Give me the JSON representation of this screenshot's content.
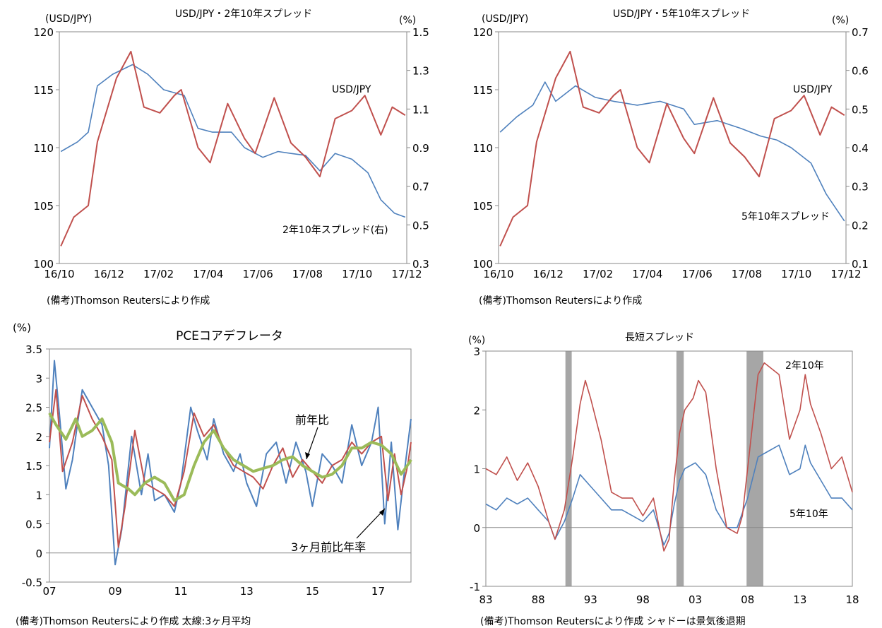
{
  "charts": [
    {
      "id": "c1",
      "title": "USD/JPY・2年10年スプレッド",
      "left_unit": "(USD/JPY)",
      "right_unit": "(%)",
      "left_ticks": [
        "120",
        "115",
        "110",
        "105",
        "100"
      ],
      "right_ticks": [
        "1.5",
        "1.3",
        "1.1",
        "0.9",
        "0.7",
        "0.5",
        "0.3"
      ],
      "x_ticks": [
        "16/10",
        "16/12",
        "17/02",
        "17/04",
        "17/06",
        "17/08",
        "17/10",
        "17/12"
      ],
      "labels": {
        "usdjpy": "USD/JPY",
        "spread": "2年10年スプレッド(右)"
      },
      "note": "(備考)Thomson Reutersにより作成"
    },
    {
      "id": "c2",
      "title": "USD/JPY・5年10年スプレッド",
      "left_unit": "(USD/JPY)",
      "right_unit": "(%)",
      "left_ticks": [
        "120",
        "115",
        "110",
        "105",
        "100"
      ],
      "right_ticks": [
        "0.7",
        "0.6",
        "0.5",
        "0.4",
        "0.3",
        "0.2",
        "0.1"
      ],
      "x_ticks": [
        "16/10",
        "16/12",
        "17/02",
        "17/04",
        "17/06",
        "17/08",
        "17/10",
        "17/12"
      ],
      "labels": {
        "usdjpy": "USD/JPY",
        "spread": "5年10年スプレッド"
      },
      "note": "(備考)Thomson Reutersにより作成"
    },
    {
      "id": "c3",
      "title": "PCEコアデフレータ",
      "left_unit": "(%)",
      "left_ticks": [
        "3.5",
        "3",
        "2.5",
        "2",
        "1.5",
        "1",
        "0.5",
        "0",
        "-0.5"
      ],
      "x_ticks": [
        "07",
        "09",
        "11",
        "13",
        "15",
        "17"
      ],
      "labels": {
        "yoy": "前年比",
        "m3": "3ヶ月前比年率"
      },
      "note": "(備考)Thomson Reutersにより作成 太線:3ヶ月平均"
    },
    {
      "id": "c4",
      "title": "長短スプレッド",
      "left_unit": "(%)",
      "left_ticks": [
        "3",
        "2",
        "1",
        "0",
        "-1"
      ],
      "x_ticks": [
        "83",
        "88",
        "93",
        "98",
        "03",
        "08",
        "13",
        "18"
      ],
      "labels": {
        "s2": "2年10年",
        "s5": "5年10年"
      },
      "note": "(備考)Thomson Reutersにより作成 シャドーは景気後退期"
    }
  ],
  "colors": {
    "red": "#c0504d",
    "blue": "#4f81bd",
    "green": "#9bbb59",
    "shade": "#a6a6a6",
    "axis": "#898989"
  },
  "chart_data": [
    {
      "type": "line",
      "title": "USD/JPY・2年10年スプレッド",
      "x_range": [
        "2016-10",
        "2017-12"
      ],
      "y_left": {
        "label": "(USD/JPY)",
        "range": [
          100,
          120
        ]
      },
      "y_right": {
        "label": "(%)",
        "range": [
          0.3,
          1.5
        ]
      },
      "series": [
        {
          "name": "USD/JPY",
          "axis": "left",
          "color": "#c0504d",
          "x": [
            "2016-10-03",
            "2016-10-20",
            "2016-11-08",
            "2016-11-20",
            "2016-12-15",
            "2017-01-03",
            "2017-01-20",
            "2017-02-10",
            "2017-03-01",
            "2017-03-10",
            "2017-04-01",
            "2017-04-17",
            "2017-05-10",
            "2017-06-01",
            "2017-06-15",
            "2017-07-10",
            "2017-08-01",
            "2017-08-20",
            "2017-09-08",
            "2017-09-28",
            "2017-10-20",
            "2017-11-06",
            "2017-11-27",
            "2017-12-12",
            "2017-12-29"
          ],
          "y": [
            101.5,
            104,
            105,
            110.5,
            116,
            118.3,
            113.5,
            113,
            114.5,
            115,
            110,
            108.7,
            113.8,
            110.8,
            109.5,
            114.3,
            110.4,
            109.2,
            107.5,
            112.5,
            113.2,
            114.5,
            111.1,
            113.5,
            112.8
          ]
        },
        {
          "name": "2年10年スプレッド(右)",
          "axis": "right",
          "color": "#4f81bd",
          "x": [
            "2016-10-03",
            "2016-10-25",
            "2016-11-08",
            "2016-11-20",
            "2016-12-10",
            "2017-01-05",
            "2017-01-25",
            "2017-02-15",
            "2017-03-14",
            "2017-04-01",
            "2017-04-20",
            "2017-05-15",
            "2017-06-01",
            "2017-06-25",
            "2017-07-15",
            "2017-08-01",
            "2017-08-20",
            "2017-09-08",
            "2017-09-28",
            "2017-10-20",
            "2017-11-10",
            "2017-11-27",
            "2017-12-15",
            "2017-12-29"
          ],
          "y": [
            0.88,
            0.93,
            0.98,
            1.22,
            1.28,
            1.33,
            1.28,
            1.2,
            1.17,
            1.0,
            0.98,
            0.98,
            0.9,
            0.85,
            0.88,
            0.87,
            0.86,
            0.78,
            0.87,
            0.84,
            0.77,
            0.63,
            0.56,
            0.54
          ]
        }
      ]
    },
    {
      "type": "line",
      "title": "USD/JPY・5年10年スプレッド",
      "x_range": [
        "2016-10",
        "2017-12"
      ],
      "y_left": {
        "label": "(USD/JPY)",
        "range": [
          100,
          120
        ]
      },
      "y_right": {
        "label": "(%)",
        "range": [
          0.1,
          0.7
        ]
      },
      "series": [
        {
          "name": "USD/JPY",
          "axis": "left",
          "color": "#c0504d",
          "x": [
            "2016-10-03",
            "2016-10-20",
            "2016-11-08",
            "2016-11-20",
            "2016-12-15",
            "2017-01-03",
            "2017-01-20",
            "2017-02-10",
            "2017-03-01",
            "2017-03-10",
            "2017-04-01",
            "2017-04-17",
            "2017-05-10",
            "2017-06-01",
            "2017-06-15",
            "2017-07-10",
            "2017-08-01",
            "2017-08-20",
            "2017-09-08",
            "2017-09-28",
            "2017-10-20",
            "2017-11-06",
            "2017-11-27",
            "2017-12-12",
            "2017-12-29"
          ],
          "y": [
            101.5,
            104,
            105,
            110.5,
            116,
            118.3,
            113.5,
            113,
            114.5,
            115,
            110,
            108.7,
            113.8,
            110.8,
            109.5,
            114.3,
            110.4,
            109.2,
            107.5,
            112.5,
            113.2,
            114.5,
            111.1,
            113.5,
            112.8
          ]
        },
        {
          "name": "5年10年スプレッド",
          "axis": "right",
          "color": "#4f81bd",
          "x": [
            "2016-10-03",
            "2016-10-25",
            "2016-11-15",
            "2016-12-01",
            "2016-12-15",
            "2017-01-10",
            "2017-02-05",
            "2017-03-01",
            "2017-04-01",
            "2017-05-01",
            "2017-06-01",
            "2017-06-15",
            "2017-07-15",
            "2017-08-15",
            "2017-09-10",
            "2017-10-01",
            "2017-10-20",
            "2017-11-15",
            "2017-12-05",
            "2017-12-29"
          ],
          "y": [
            0.44,
            0.48,
            0.51,
            0.57,
            0.52,
            0.56,
            0.53,
            0.52,
            0.51,
            0.52,
            0.5,
            0.46,
            0.47,
            0.45,
            0.43,
            0.42,
            0.4,
            0.36,
            0.28,
            0.21
          ]
        }
      ]
    },
    {
      "type": "line",
      "title": "PCEコアデフレータ",
      "x_range": [
        "2007",
        "2018"
      ],
      "y": {
        "label": "(%)",
        "range": [
          -0.5,
          3.5
        ]
      },
      "series": [
        {
          "name": "3ヶ月前比年率",
          "color": "#4f81bd",
          "x": [
            2007.0,
            2007.15,
            2007.3,
            2007.5,
            2007.7,
            2008.0,
            2008.3,
            2008.6,
            2008.8,
            2009.0,
            2009.2,
            2009.5,
            2009.8,
            2010.0,
            2010.2,
            2010.5,
            2010.8,
            2011.0,
            2011.3,
            2011.5,
            2011.8,
            2012.0,
            2012.3,
            2012.6,
            2012.8,
            2013.0,
            2013.3,
            2013.6,
            2013.9,
            2014.2,
            2014.5,
            2014.8,
            2015.0,
            2015.3,
            2015.6,
            2015.9,
            2016.2,
            2016.5,
            2016.8,
            2017.0,
            2017.2,
            2017.4,
            2017.6,
            2017.8,
            2018.0
          ],
          "y": [
            1.8,
            3.3,
            2.4,
            1.1,
            1.6,
            2.8,
            2.5,
            2.2,
            1.5,
            -0.2,
            0.4,
            2.0,
            1.0,
            1.7,
            0.9,
            1.0,
            0.7,
            1.2,
            2.5,
            2.1,
            1.6,
            2.3,
            1.7,
            1.4,
            1.7,
            1.2,
            0.8,
            1.7,
            1.9,
            1.2,
            1.9,
            1.4,
            0.8,
            1.7,
            1.5,
            1.2,
            2.2,
            1.5,
            1.9,
            2.5,
            0.5,
            1.9,
            0.4,
            1.4,
            2.3
          ]
        },
        {
          "name": "前年比",
          "color": "#c0504d",
          "x": [
            2007.0,
            2007.2,
            2007.4,
            2007.7,
            2008.0,
            2008.3,
            2008.6,
            2008.9,
            2009.1,
            2009.3,
            2009.6,
            2009.9,
            2010.2,
            2010.5,
            2010.8,
            2011.1,
            2011.4,
            2011.7,
            2012.0,
            2012.3,
            2012.6,
            2012.9,
            2013.2,
            2013.5,
            2013.8,
            2014.1,
            2014.4,
            2014.7,
            2015.0,
            2015.3,
            2015.6,
            2015.9,
            2016.2,
            2016.5,
            2016.8,
            2017.1,
            2017.3,
            2017.5,
            2017.7,
            2017.9,
            2018.0
          ],
          "y": [
            1.9,
            2.8,
            1.4,
            1.9,
            2.7,
            2.3,
            2.0,
            1.6,
            0.1,
            0.8,
            2.1,
            1.2,
            1.1,
            1.0,
            0.8,
            1.4,
            2.4,
            2.0,
            2.2,
            1.8,
            1.5,
            1.4,
            1.3,
            1.1,
            1.5,
            1.8,
            1.3,
            1.6,
            1.4,
            1.2,
            1.5,
            1.6,
            1.9,
            1.7,
            1.9,
            2.0,
            0.9,
            1.7,
            1.0,
            1.5,
            1.9
          ]
        },
        {
          "name": "3ヶ月平均",
          "color": "#9bbb59",
          "x": [
            2007.0,
            2007.2,
            2007.5,
            2007.8,
            2008.0,
            2008.3,
            2008.6,
            2008.9,
            2009.1,
            2009.4,
            2009.6,
            2009.9,
            2010.2,
            2010.5,
            2010.8,
            2011.1,
            2011.4,
            2011.7,
            2012.0,
            2012.3,
            2012.6,
            2012.9,
            2013.2,
            2013.5,
            2013.8,
            2014.1,
            2014.4,
            2014.7,
            2015.0,
            2015.3,
            2015.6,
            2015.9,
            2016.2,
            2016.5,
            2016.8,
            2017.1,
            2017.4,
            2017.7,
            2017.95,
            2018.0
          ],
          "y": [
            2.4,
            2.2,
            1.95,
            2.3,
            2.0,
            2.1,
            2.3,
            1.9,
            1.2,
            1.1,
            1.0,
            1.2,
            1.3,
            1.2,
            0.9,
            1.0,
            1.5,
            1.9,
            2.1,
            1.8,
            1.6,
            1.5,
            1.4,
            1.45,
            1.5,
            1.6,
            1.65,
            1.5,
            1.4,
            1.3,
            1.35,
            1.5,
            1.8,
            1.8,
            1.9,
            1.85,
            1.7,
            1.35,
            1.55,
            1.6
          ]
        }
      ]
    },
    {
      "type": "line",
      "title": "長短スプレッド",
      "x_range": [
        1983,
        2018
      ],
      "y": {
        "label": "(%)",
        "range": [
          -1,
          3
        ]
      },
      "shaded_periods": [
        [
          1990.6,
          1991.2
        ],
        [
          2001.2,
          2001.9
        ],
        [
          2007.9,
          2009.5
        ]
      ],
      "series": [
        {
          "name": "2年10年",
          "color": "#c0504d",
          "x": [
            1983.0,
            1984.0,
            1985.0,
            1986.0,
            1987.0,
            1988.0,
            1989.0,
            1989.6,
            1990.5,
            1991.3,
            1992.0,
            1992.5,
            1993.0,
            1994.0,
            1995.0,
            1996.0,
            1997.0,
            1998.0,
            1999.0,
            2000.0,
            2000.5,
            2001.0,
            2001.5,
            2002.0,
            2002.8,
            2003.3,
            2004.0,
            2005.0,
            2006.0,
            2007.0,
            2007.5,
            2008.0,
            2008.5,
            2009.0,
            2009.6,
            2010.3,
            2011.0,
            2012.0,
            2013.0,
            2013.5,
            2014.0,
            2015.0,
            2016.0,
            2017.0,
            2018.0
          ],
          "y": [
            1.0,
            0.9,
            1.2,
            0.8,
            1.1,
            0.7,
            0.1,
            -0.2,
            0.3,
            1.2,
            2.1,
            2.5,
            2.2,
            1.5,
            0.6,
            0.5,
            0.5,
            0.2,
            0.5,
            -0.4,
            -0.2,
            0.8,
            1.6,
            2.0,
            2.2,
            2.5,
            2.3,
            1.0,
            0.0,
            -0.1,
            0.2,
            1.0,
            1.8,
            2.6,
            2.8,
            2.7,
            2.6,
            1.5,
            2.0,
            2.6,
            2.1,
            1.6,
            1.0,
            1.2,
            0.6
          ]
        },
        {
          "name": "5年10年",
          "color": "#4f81bd",
          "x": [
            1983.0,
            1984.0,
            1985.0,
            1986.0,
            1987.0,
            1988.0,
            1989.0,
            1989.6,
            1990.5,
            1991.3,
            1992.0,
            1993.0,
            1994.0,
            1995.0,
            1996.0,
            1997.0,
            1998.0,
            1999.0,
            2000.0,
            2000.5,
            2001.0,
            2001.5,
            2002.0,
            2003.0,
            2004.0,
            2005.0,
            2006.0,
            2007.0,
            2008.0,
            2009.0,
            2010.0,
            2011.0,
            2012.0,
            2013.0,
            2013.5,
            2014.0,
            2015.0,
            2016.0,
            2017.0,
            2018.0
          ],
          "y": [
            0.4,
            0.3,
            0.5,
            0.4,
            0.5,
            0.3,
            0.1,
            -0.2,
            0.1,
            0.5,
            0.9,
            0.7,
            0.5,
            0.3,
            0.3,
            0.2,
            0.1,
            0.3,
            -0.3,
            -0.1,
            0.4,
            0.8,
            1.0,
            1.1,
            0.9,
            0.3,
            0.0,
            0.0,
            0.5,
            1.2,
            1.3,
            1.4,
            0.9,
            1.0,
            1.4,
            1.1,
            0.8,
            0.5,
            0.5,
            0.3
          ]
        }
      ]
    }
  ]
}
